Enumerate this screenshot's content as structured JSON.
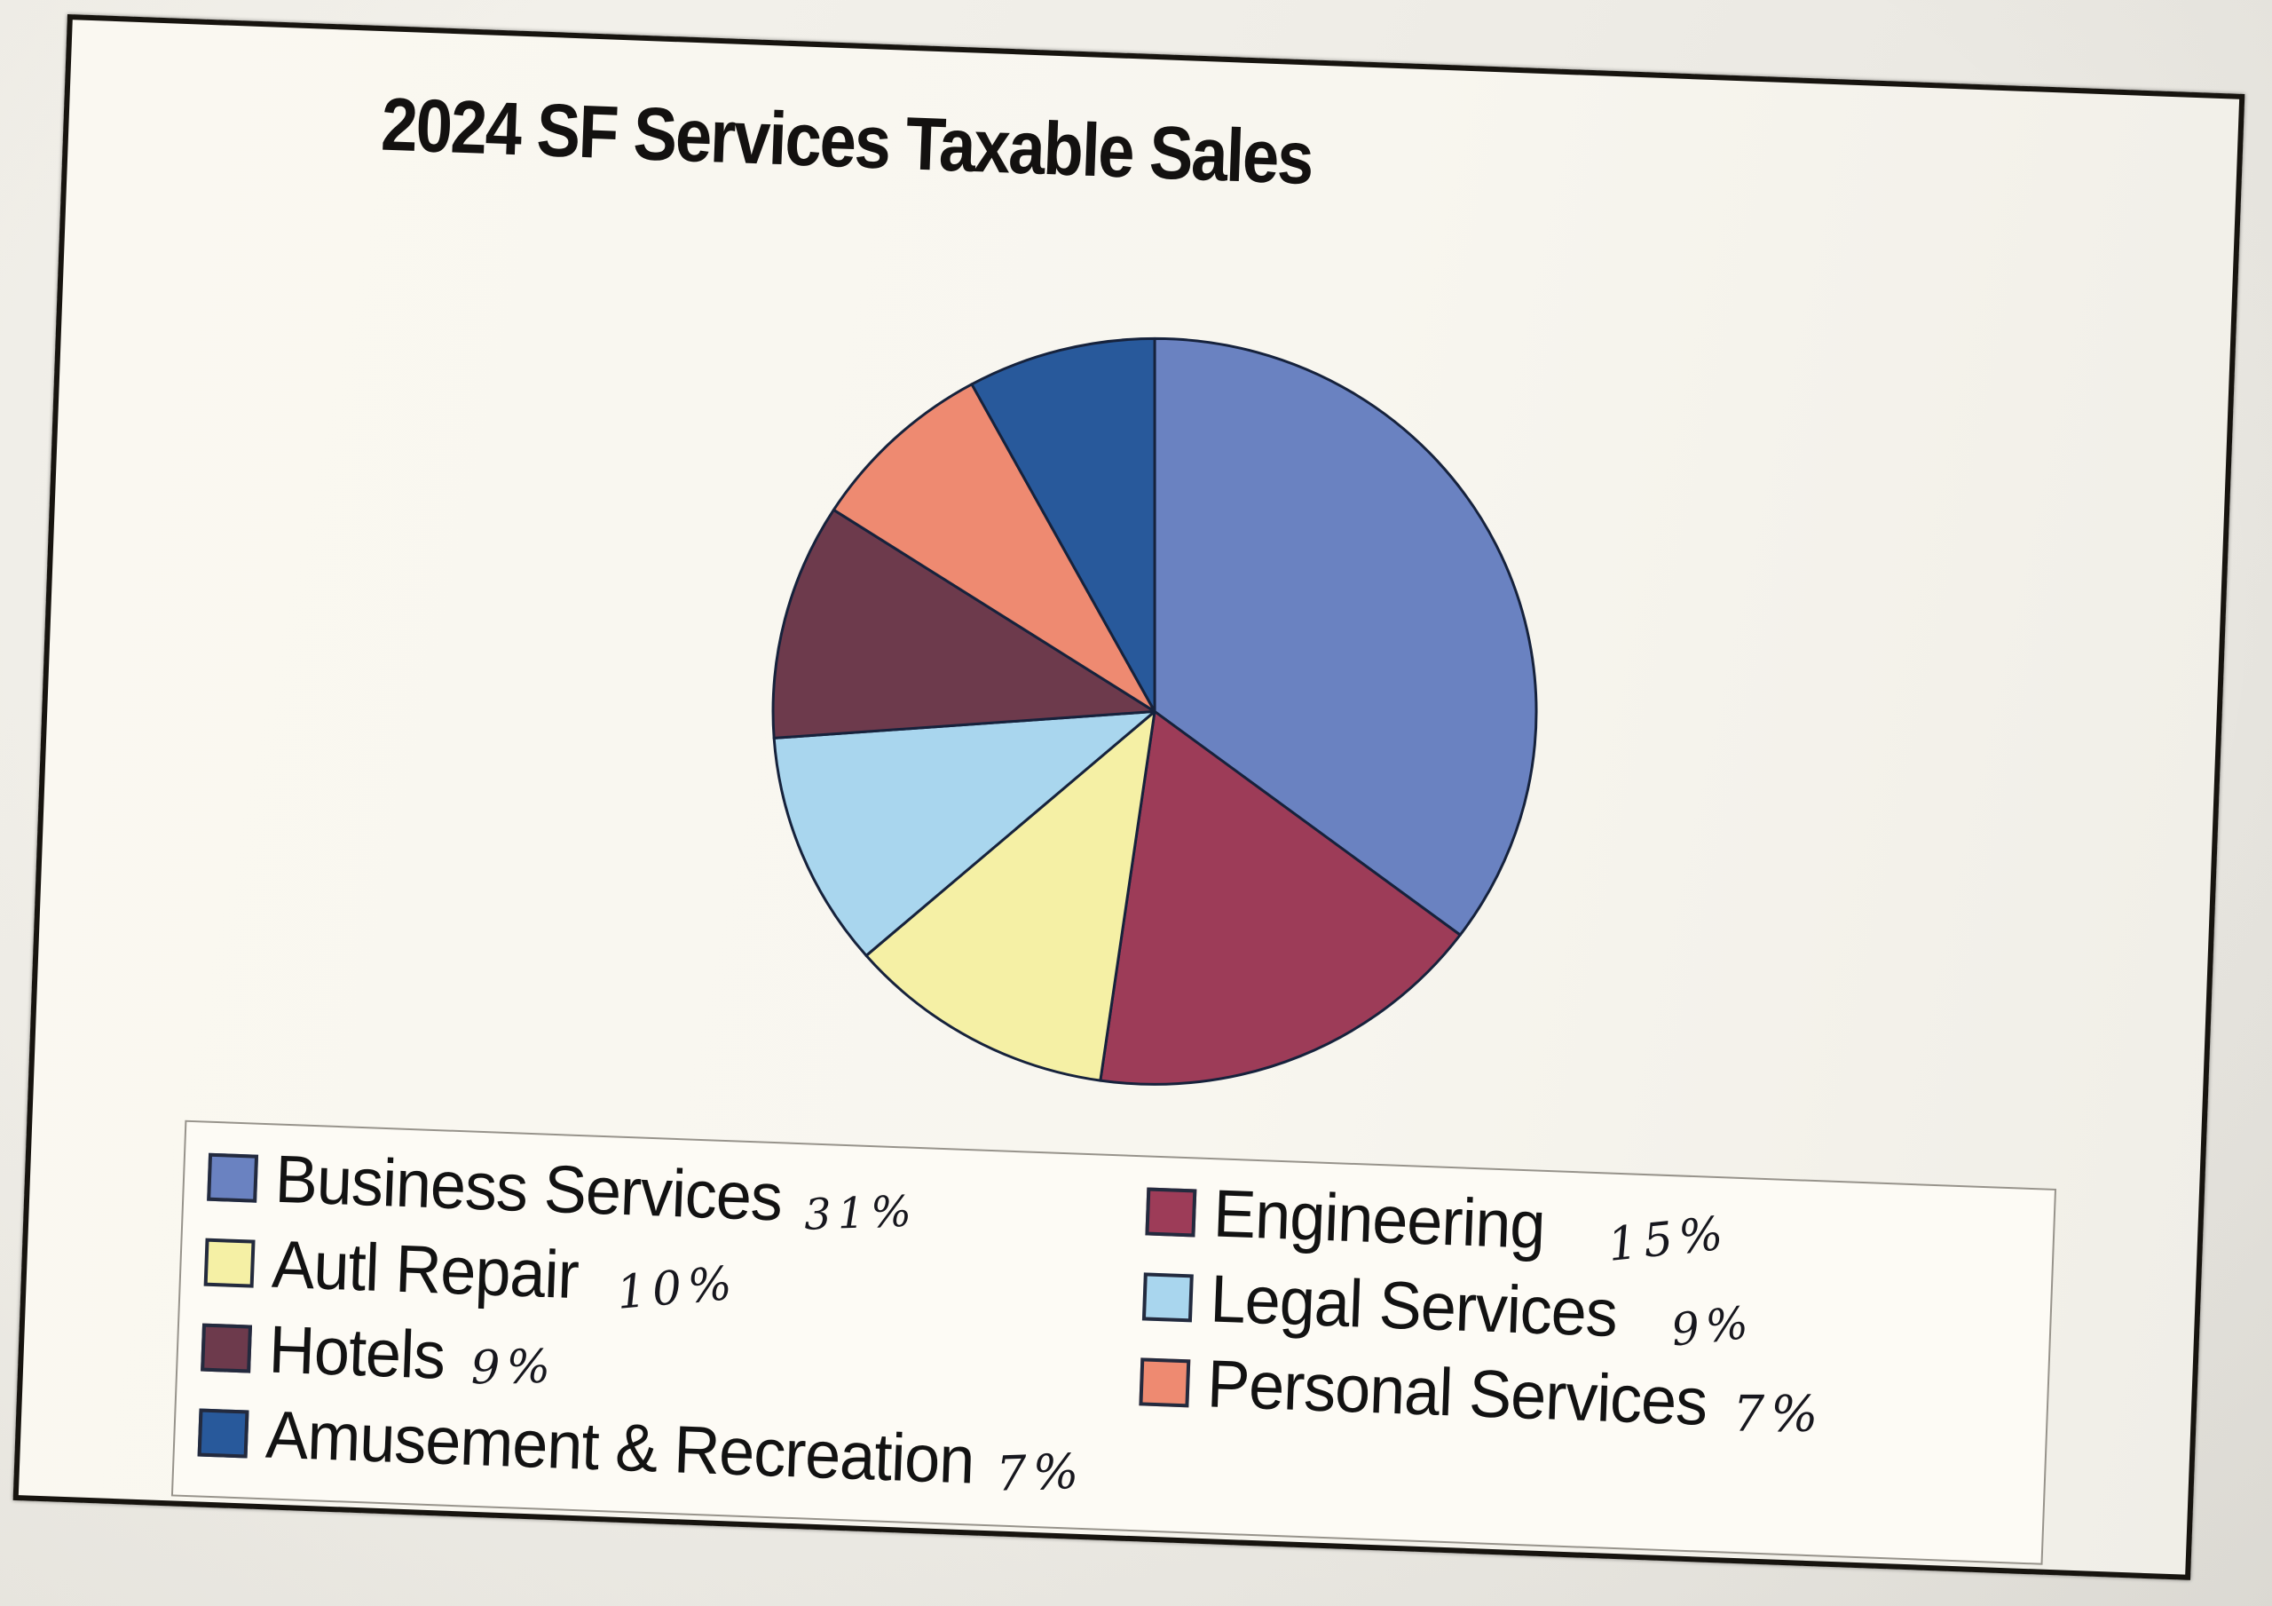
{
  "chart_data": {
    "type": "pie",
    "title": "2024 SF Services Taxable Sales",
    "legend_position": "bottom",
    "start_angle_deg": 0,
    "direction": "clockwise",
    "series": [
      {
        "label": "Business Services",
        "value": 31,
        "percent_label": "31%",
        "color": "#6a82c1"
      },
      {
        "label": "Engineering",
        "value": 15,
        "percent_label": "15%",
        "color": "#9d3c58"
      },
      {
        "label": "Autl Repair",
        "value": 10,
        "percent_label": "10%",
        "color": "#f5f0a5"
      },
      {
        "label": "Legal Services",
        "value": 9,
        "percent_label": "9%",
        "color": "#a9d6ee"
      },
      {
        "label": "Hotels",
        "value": 9,
        "percent_label": "9%",
        "color": "#6d3a4c"
      },
      {
        "label": "Personal Services",
        "value": 7,
        "percent_label": "7%",
        "color": "#ee8a71"
      },
      {
        "label": "Amusement & Recreation",
        "value": 7,
        "percent_label": "7%",
        "color": "#28599b"
      }
    ]
  },
  "style": {
    "slice_outline": "#16223c",
    "frame_border": "#17140f",
    "paper": "#f8f6ef",
    "legend_border": "#97938b",
    "ink": "#17171e"
  }
}
